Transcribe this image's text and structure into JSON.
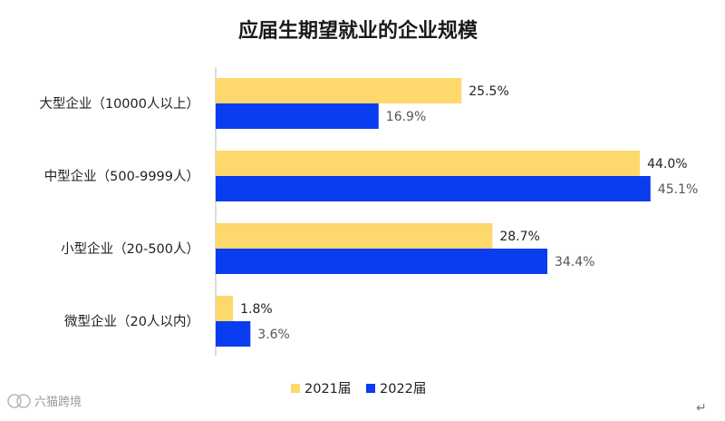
{
  "chart_data": {
    "type": "bar",
    "orientation": "horizontal",
    "title": "应届生期望就业的企业规模",
    "categories": [
      "大型企业（10000人以上）",
      "中型企业（500-9999人）",
      "小型企业（20-500人）",
      "微型企业（20人以内）"
    ],
    "series": [
      {
        "name": "2021届",
        "values": [
          25.5,
          44.0,
          28.7,
          1.8
        ],
        "labels": [
          "25.5%",
          "44.0%",
          "28.7%",
          "1.8%"
        ],
        "color": "#FDD86C",
        "label_color": "#222222"
      },
      {
        "name": "2022届",
        "values": [
          16.9,
          45.1,
          34.4,
          3.6
        ],
        "labels": [
          "16.9%",
          "45.1%",
          "34.4%",
          "3.6%"
        ],
        "color": "#0A3CF0",
        "label_color": "#555555"
      }
    ],
    "xlim": [
      0,
      47
    ],
    "grid": false,
    "legend_position": "bottom"
  },
  "watermark": {
    "text": "六猫跨境"
  },
  "trailing_mark": "↵"
}
